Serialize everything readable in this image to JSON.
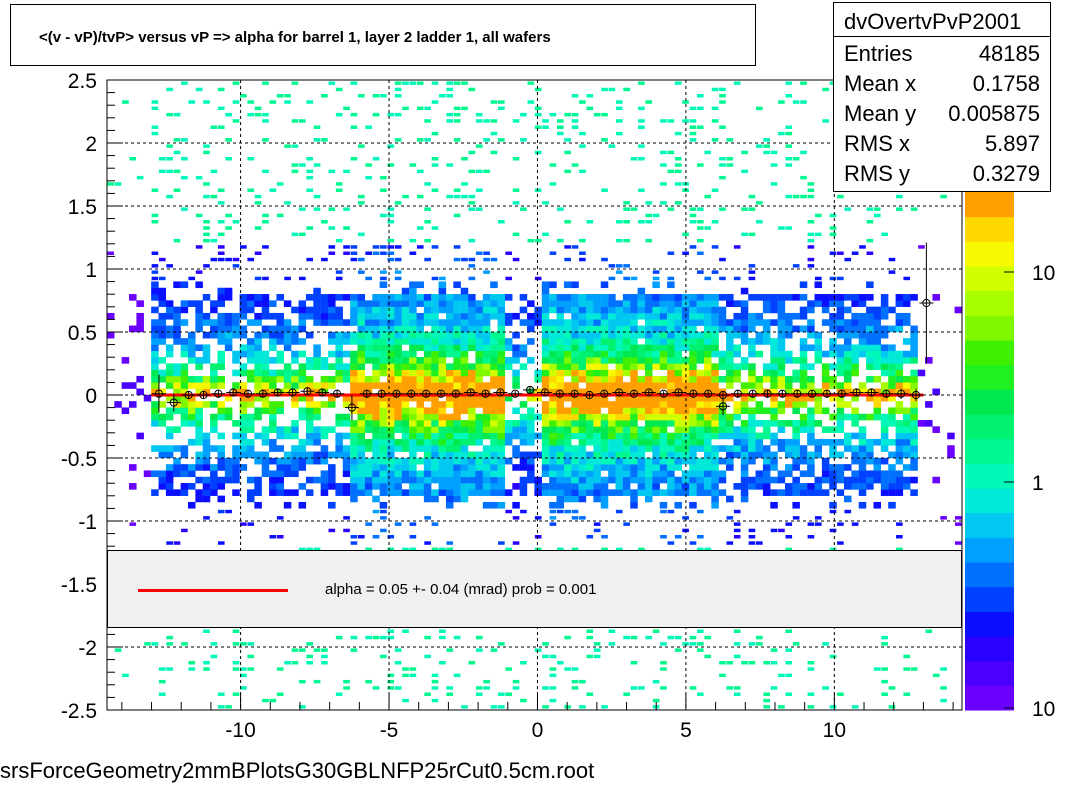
{
  "chart_data": {
    "type": "heatmap",
    "title": "<(v - vP)/tvP> versus   vP => alpha for barrel 1, layer 2 ladder 1, all wafers",
    "xlabel": "",
    "ylabel": "",
    "xlim": [
      -14.5,
      14.3
    ],
    "ylim": [
      -2.5,
      2.5
    ],
    "x_ticks": [
      "-10",
      "-5",
      "0",
      "5",
      "10"
    ],
    "y_ticks": [
      "2.5",
      "2",
      "1.5",
      "1",
      "0.5",
      "0",
      "-0.5",
      "-1",
      "-1.5",
      "-2",
      "-2.5"
    ],
    "grid": true,
    "log_color_scale": true,
    "color_scale_labels": [
      "10",
      "1",
      "10"
    ],
    "profile_points": [
      {
        "x": -12.75,
        "y": 0.01,
        "err": 0.15
      },
      {
        "x": -12.25,
        "y": -0.06,
        "err": 0.07
      },
      {
        "x": -11.75,
        "y": 0.0,
        "err": 0.03
      },
      {
        "x": -11.25,
        "y": 0.0,
        "err": 0.03
      },
      {
        "x": -10.75,
        "y": 0.01,
        "err": 0.03
      },
      {
        "x": -10.25,
        "y": 0.02,
        "err": 0.03
      },
      {
        "x": -9.75,
        "y": 0.01,
        "err": 0.03
      },
      {
        "x": -9.25,
        "y": 0.01,
        "err": 0.03
      },
      {
        "x": -8.75,
        "y": 0.02,
        "err": 0.03
      },
      {
        "x": -8.25,
        "y": 0.02,
        "err": 0.03
      },
      {
        "x": -7.75,
        "y": 0.03,
        "err": 0.03
      },
      {
        "x": -7.25,
        "y": 0.02,
        "err": 0.03
      },
      {
        "x": -6.75,
        "y": 0.01,
        "err": 0.03
      },
      {
        "x": -6.25,
        "y": -0.1,
        "err": 0.1
      },
      {
        "x": -5.75,
        "y": 0.01,
        "err": 0.03
      },
      {
        "x": -5.25,
        "y": 0.01,
        "err": 0.03
      },
      {
        "x": -4.75,
        "y": 0.01,
        "err": 0.02
      },
      {
        "x": -4.25,
        "y": 0.01,
        "err": 0.02
      },
      {
        "x": -3.75,
        "y": 0.01,
        "err": 0.02
      },
      {
        "x": -3.25,
        "y": 0.01,
        "err": 0.02
      },
      {
        "x": -2.75,
        "y": 0.01,
        "err": 0.02
      },
      {
        "x": -2.25,
        "y": 0.02,
        "err": 0.02
      },
      {
        "x": -1.75,
        "y": 0.01,
        "err": 0.02
      },
      {
        "x": -1.25,
        "y": 0.02,
        "err": 0.02
      },
      {
        "x": -0.75,
        "y": 0.01,
        "err": 0.02
      },
      {
        "x": -0.25,
        "y": 0.04,
        "err": 0.03
      },
      {
        "x": 0.25,
        "y": 0.02,
        "err": 0.02
      },
      {
        "x": 0.75,
        "y": 0.01,
        "err": 0.02
      },
      {
        "x": 1.25,
        "y": 0.01,
        "err": 0.02
      },
      {
        "x": 1.75,
        "y": 0.0,
        "err": 0.02
      },
      {
        "x": 2.25,
        "y": 0.01,
        "err": 0.02
      },
      {
        "x": 2.75,
        "y": 0.02,
        "err": 0.02
      },
      {
        "x": 3.25,
        "y": 0.01,
        "err": 0.02
      },
      {
        "x": 3.75,
        "y": 0.02,
        "err": 0.02
      },
      {
        "x": 4.25,
        "y": 0.01,
        "err": 0.02
      },
      {
        "x": 4.75,
        "y": 0.02,
        "err": 0.02
      },
      {
        "x": 5.25,
        "y": 0.01,
        "err": 0.02
      },
      {
        "x": 5.75,
        "y": 0.01,
        "err": 0.02
      },
      {
        "x": 6.25,
        "y": 0.0,
        "err": 0.03
      },
      {
        "x": 6.25,
        "y": -0.09,
        "err": 0.07
      },
      {
        "x": 6.75,
        "y": 0.01,
        "err": 0.03
      },
      {
        "x": 7.25,
        "y": 0.01,
        "err": 0.03
      },
      {
        "x": 7.75,
        "y": 0.01,
        "err": 0.03
      },
      {
        "x": 8.25,
        "y": 0.01,
        "err": 0.03
      },
      {
        "x": 8.75,
        "y": 0.01,
        "err": 0.03
      },
      {
        "x": 9.25,
        "y": 0.01,
        "err": 0.03
      },
      {
        "x": 9.75,
        "y": 0.01,
        "err": 0.03
      },
      {
        "x": 10.25,
        "y": 0.01,
        "err": 0.03
      },
      {
        "x": 10.75,
        "y": 0.02,
        "err": 0.03
      },
      {
        "x": 11.25,
        "y": 0.02,
        "err": 0.03
      },
      {
        "x": 11.75,
        "y": 0.01,
        "err": 0.03
      },
      {
        "x": 12.25,
        "y": 0.01,
        "err": 0.04
      },
      {
        "x": 12.75,
        "y": 0.0,
        "err": 0.05
      },
      {
        "x": 13.1,
        "y": 0.73,
        "err": 0.48
      }
    ],
    "fit_line": {
      "x": [
        -13.0,
        13.0
      ],
      "y": [
        0.0,
        0.0
      ],
      "color": "#ff0000"
    }
  },
  "stats": {
    "name": "dvOvertvPvP2001",
    "rows": [
      {
        "key": "Entries",
        "value": "48185"
      },
      {
        "key": "Mean x",
        "value": "0.1758"
      },
      {
        "key": "Mean y",
        "value": "0.005875"
      },
      {
        "key": "RMS x",
        "value": "5.897"
      },
      {
        "key": "RMS y",
        "value": "0.3279"
      }
    ]
  },
  "fit_legend": {
    "text": "alpha =    0.05 +-  0.04 (mrad) prob = 0.001",
    "line_color": "#ff0000"
  },
  "footer": "srsForceGeometry2mmBPlotsG30GBLNFP25rCut0.5cm.root",
  "colors": {
    "palette": [
      "#6a00ff",
      "#4a00ff",
      "#2a00ff",
      "#0a10ff",
      "#0040ff",
      "#0070ff",
      "#00a0ff",
      "#00c8f0",
      "#00e8d8",
      "#00f8b8",
      "#00f890",
      "#00f070",
      "#00e850",
      "#20f020",
      "#40f000",
      "#80f800",
      "#a8ff00",
      "#d0ff00",
      "#f8f800",
      "#ffd800",
      "#ffa000"
    ]
  }
}
